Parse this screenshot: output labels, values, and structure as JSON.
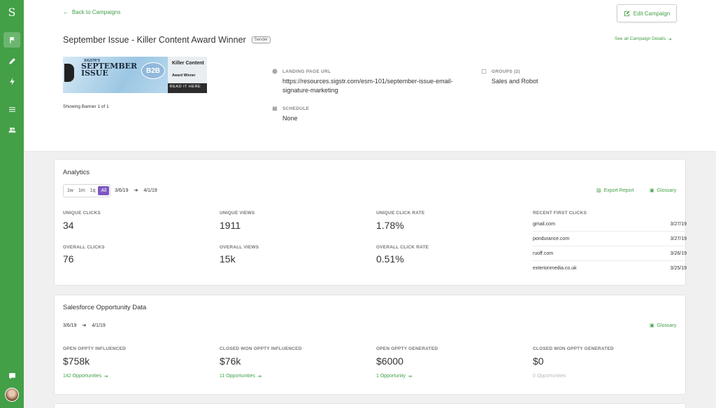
{
  "sidebar": {
    "logo": "S",
    "items": [
      {
        "icon": "flag-icon",
        "active": true
      },
      {
        "icon": "pencil-icon",
        "active": false
      },
      {
        "icon": "bolt-icon",
        "active": false
      },
      {
        "icon": "list-icon",
        "active": false
      },
      {
        "icon": "users-icon",
        "active": false
      },
      {
        "icon": "chat-icon",
        "active": false
      }
    ]
  },
  "header": {
    "back_label": "Back to Campaigns",
    "edit_label": "Edit Campaign",
    "title": "September Issue - Killer Content Award Winner",
    "badge": "Sender",
    "see_all": "See all Campaign Details",
    "banner": {
      "line1": "SIGSTR'S",
      "line2": "SEPTEMBER ISSUE",
      "seal": "B2B",
      "right1": "Killer Content",
      "right2": "Award Winner",
      "cta": "READ IT HERE"
    },
    "banner_count": "Showing Banner 1 of 1",
    "landing_label": "LANDING PAGE URL",
    "landing_url": "https://resources.sigstr.com/esm-101/september-issue-email-signature-marketing",
    "schedule_label": "SCHEDULE",
    "schedule_value": "None",
    "groups_label": "GROUPS (2)",
    "groups_value": "Sales and Robot"
  },
  "analytics": {
    "title": "Analytics",
    "ranges": [
      "1w",
      "1m",
      "1q",
      "All"
    ],
    "selected_range": "All",
    "date_from": "3/6/19",
    "date_to": "4/1/19",
    "export_label": "Export Report",
    "glossary_label": "Glossary",
    "unique_clicks_label": "UNIQUE CLICKS",
    "unique_clicks": "34",
    "unique_views_label": "UNIQUE VIEWS",
    "unique_views": "1911",
    "unique_rate_label": "UNIQUE CLICK RATE",
    "unique_rate": "1.78%",
    "overall_clicks_label": "OVERALL CLICKS",
    "overall_clicks": "76",
    "overall_views_label": "OVERALL VIEWS",
    "overall_views": "15k",
    "overall_rate_label": "OVERALL CLICK RATE",
    "overall_rate": "0.51%",
    "recent_label": "RECENT FIRST CLICKS",
    "recent": [
      {
        "domain": "gmail.com",
        "date": "3/27/19"
      },
      {
        "domain": "pondurance.com",
        "date": "3/27/19"
      },
      {
        "domain": "ruoff.com",
        "date": "3/26/19"
      },
      {
        "domain": "exterionmedia.co.uk",
        "date": "3/25/19"
      }
    ]
  },
  "salesforce": {
    "title": "Salesforce Opportunity Data",
    "date_from": "3/6/19",
    "date_to": "4/1/19",
    "glossary_label": "Glossary",
    "metrics": [
      {
        "label": "OPEN OPPTY INFLUENCED",
        "value": "$758k",
        "link": "142 Opportunities"
      },
      {
        "label": "CLOSED WON OPPTY INFLUENCED",
        "value": "$76k",
        "link": "11 Opportunities"
      },
      {
        "label": "OPEN OPPTY GENERATED",
        "value": "$6000",
        "link": "1 Opportunity"
      },
      {
        "label": "CLOSED WON OPPTY GENERATED",
        "value": "$0",
        "link": "0 Opportunities"
      }
    ]
  },
  "colors": {
    "brand": "#43a047",
    "range_selected": "#7e57c2"
  }
}
